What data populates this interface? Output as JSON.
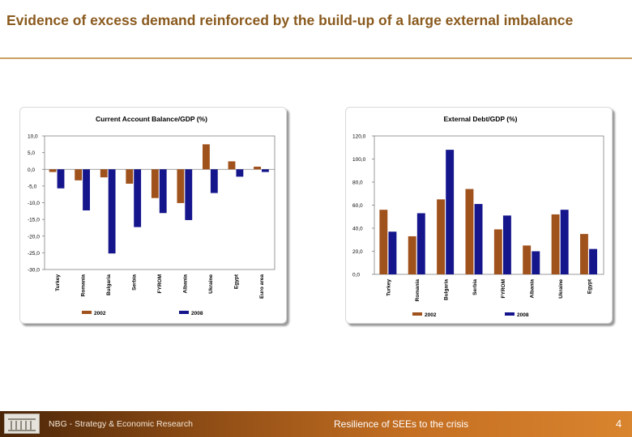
{
  "slide": {
    "title": "Evidence of excess demand reinforced by the build-up of a large external imbalance"
  },
  "footer": {
    "left_text": "NBG - Strategy & Economic Research",
    "center_text": "Resilience of SEEs to the crisis",
    "page_number": "4"
  },
  "colors": {
    "series_2002": "#a0521c",
    "series_2008": "#15158c",
    "title": "#8a5a1e"
  },
  "chart_data": [
    {
      "type": "bar",
      "title": "Current Account Balance/GDP (%)",
      "categories": [
        "Turkey",
        "Romania",
        "Bulgaria",
        "Serbia",
        "FYROM",
        "Albania",
        "Ukraine",
        "Egypt",
        "Euro area"
      ],
      "series": [
        {
          "name": "2002",
          "values": [
            -0.8,
            -3.3,
            -2.4,
            -4.3,
            -8.6,
            -10.1,
            7.5,
            2.4,
            0.8
          ]
        },
        {
          "name": "2008",
          "values": [
            -5.7,
            -12.3,
            -25.2,
            -17.3,
            -13.1,
            -15.2,
            -7.1,
            -2.2,
            -0.8
          ]
        }
      ],
      "ylim": [
        -30,
        10
      ],
      "yticks": [
        "10,0",
        "5,0",
        "0,0",
        "-5,0",
        "-10,0",
        "-15,0",
        "-20,0",
        "-25,0",
        "-30,0"
      ],
      "legend": [
        "2002",
        "2008"
      ],
      "legend_position": "bottom"
    },
    {
      "type": "bar",
      "title": "External Debt/GDP (%)",
      "categories": [
        "Turkey",
        "Romania",
        "Bulgaria",
        "Serbia",
        "FYROM",
        "Albania",
        "Ukraine",
        "Egypt"
      ],
      "series": [
        {
          "name": "2002",
          "values": [
            56,
            33,
            65,
            74,
            39,
            25,
            52,
            35
          ]
        },
        {
          "name": "2008",
          "values": [
            37,
            53,
            108,
            61,
            51,
            20,
            56,
            22
          ]
        }
      ],
      "ylim": [
        0,
        120
      ],
      "yticks": [
        "120,0",
        "100,0",
        "80,0",
        "60,0",
        "40,0",
        "20,0",
        "0,0"
      ],
      "legend": [
        "2002",
        "2008"
      ],
      "legend_position": "bottom"
    }
  ]
}
